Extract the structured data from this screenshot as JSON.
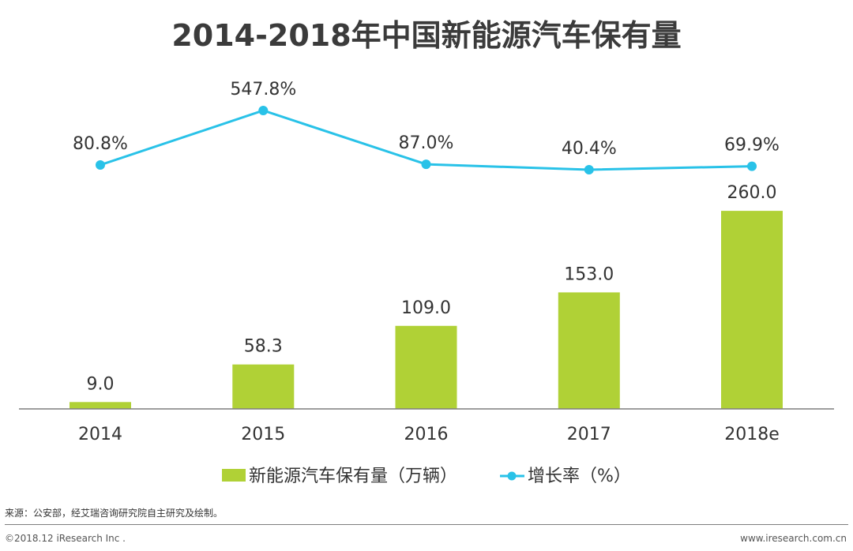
{
  "chart_data": {
    "type": "bar+line",
    "title": "2014-2018年中国新能源汽车保有量",
    "categories": [
      "2014",
      "2015",
      "2016",
      "2017",
      "2018e"
    ],
    "series": [
      {
        "name": "新能源汽车保有量（万辆）",
        "type": "bar",
        "values": [
          9.0,
          58.3,
          109.0,
          153.0,
          260.0
        ],
        "labels": [
          "9.0",
          "58.3",
          "109.0",
          "153.0",
          "260.0"
        ],
        "color": "#b0d136"
      },
      {
        "name": "增长率（%）",
        "type": "line",
        "values": [
          80.8,
          547.8,
          87.0,
          40.4,
          69.9
        ],
        "labels": [
          "80.8%",
          "547.8%",
          "87.0%",
          "40.4%",
          "69.9%"
        ],
        "color": "#29c2e8"
      }
    ],
    "grid": false,
    "legend_position": "bottom"
  },
  "footer": {
    "source": "来源：公安部，经艾瑞咨询研究院自主研究及绘制。",
    "copyright": "©2018.12 iResearch Inc .",
    "website": "www.iresearch.com.cn"
  }
}
